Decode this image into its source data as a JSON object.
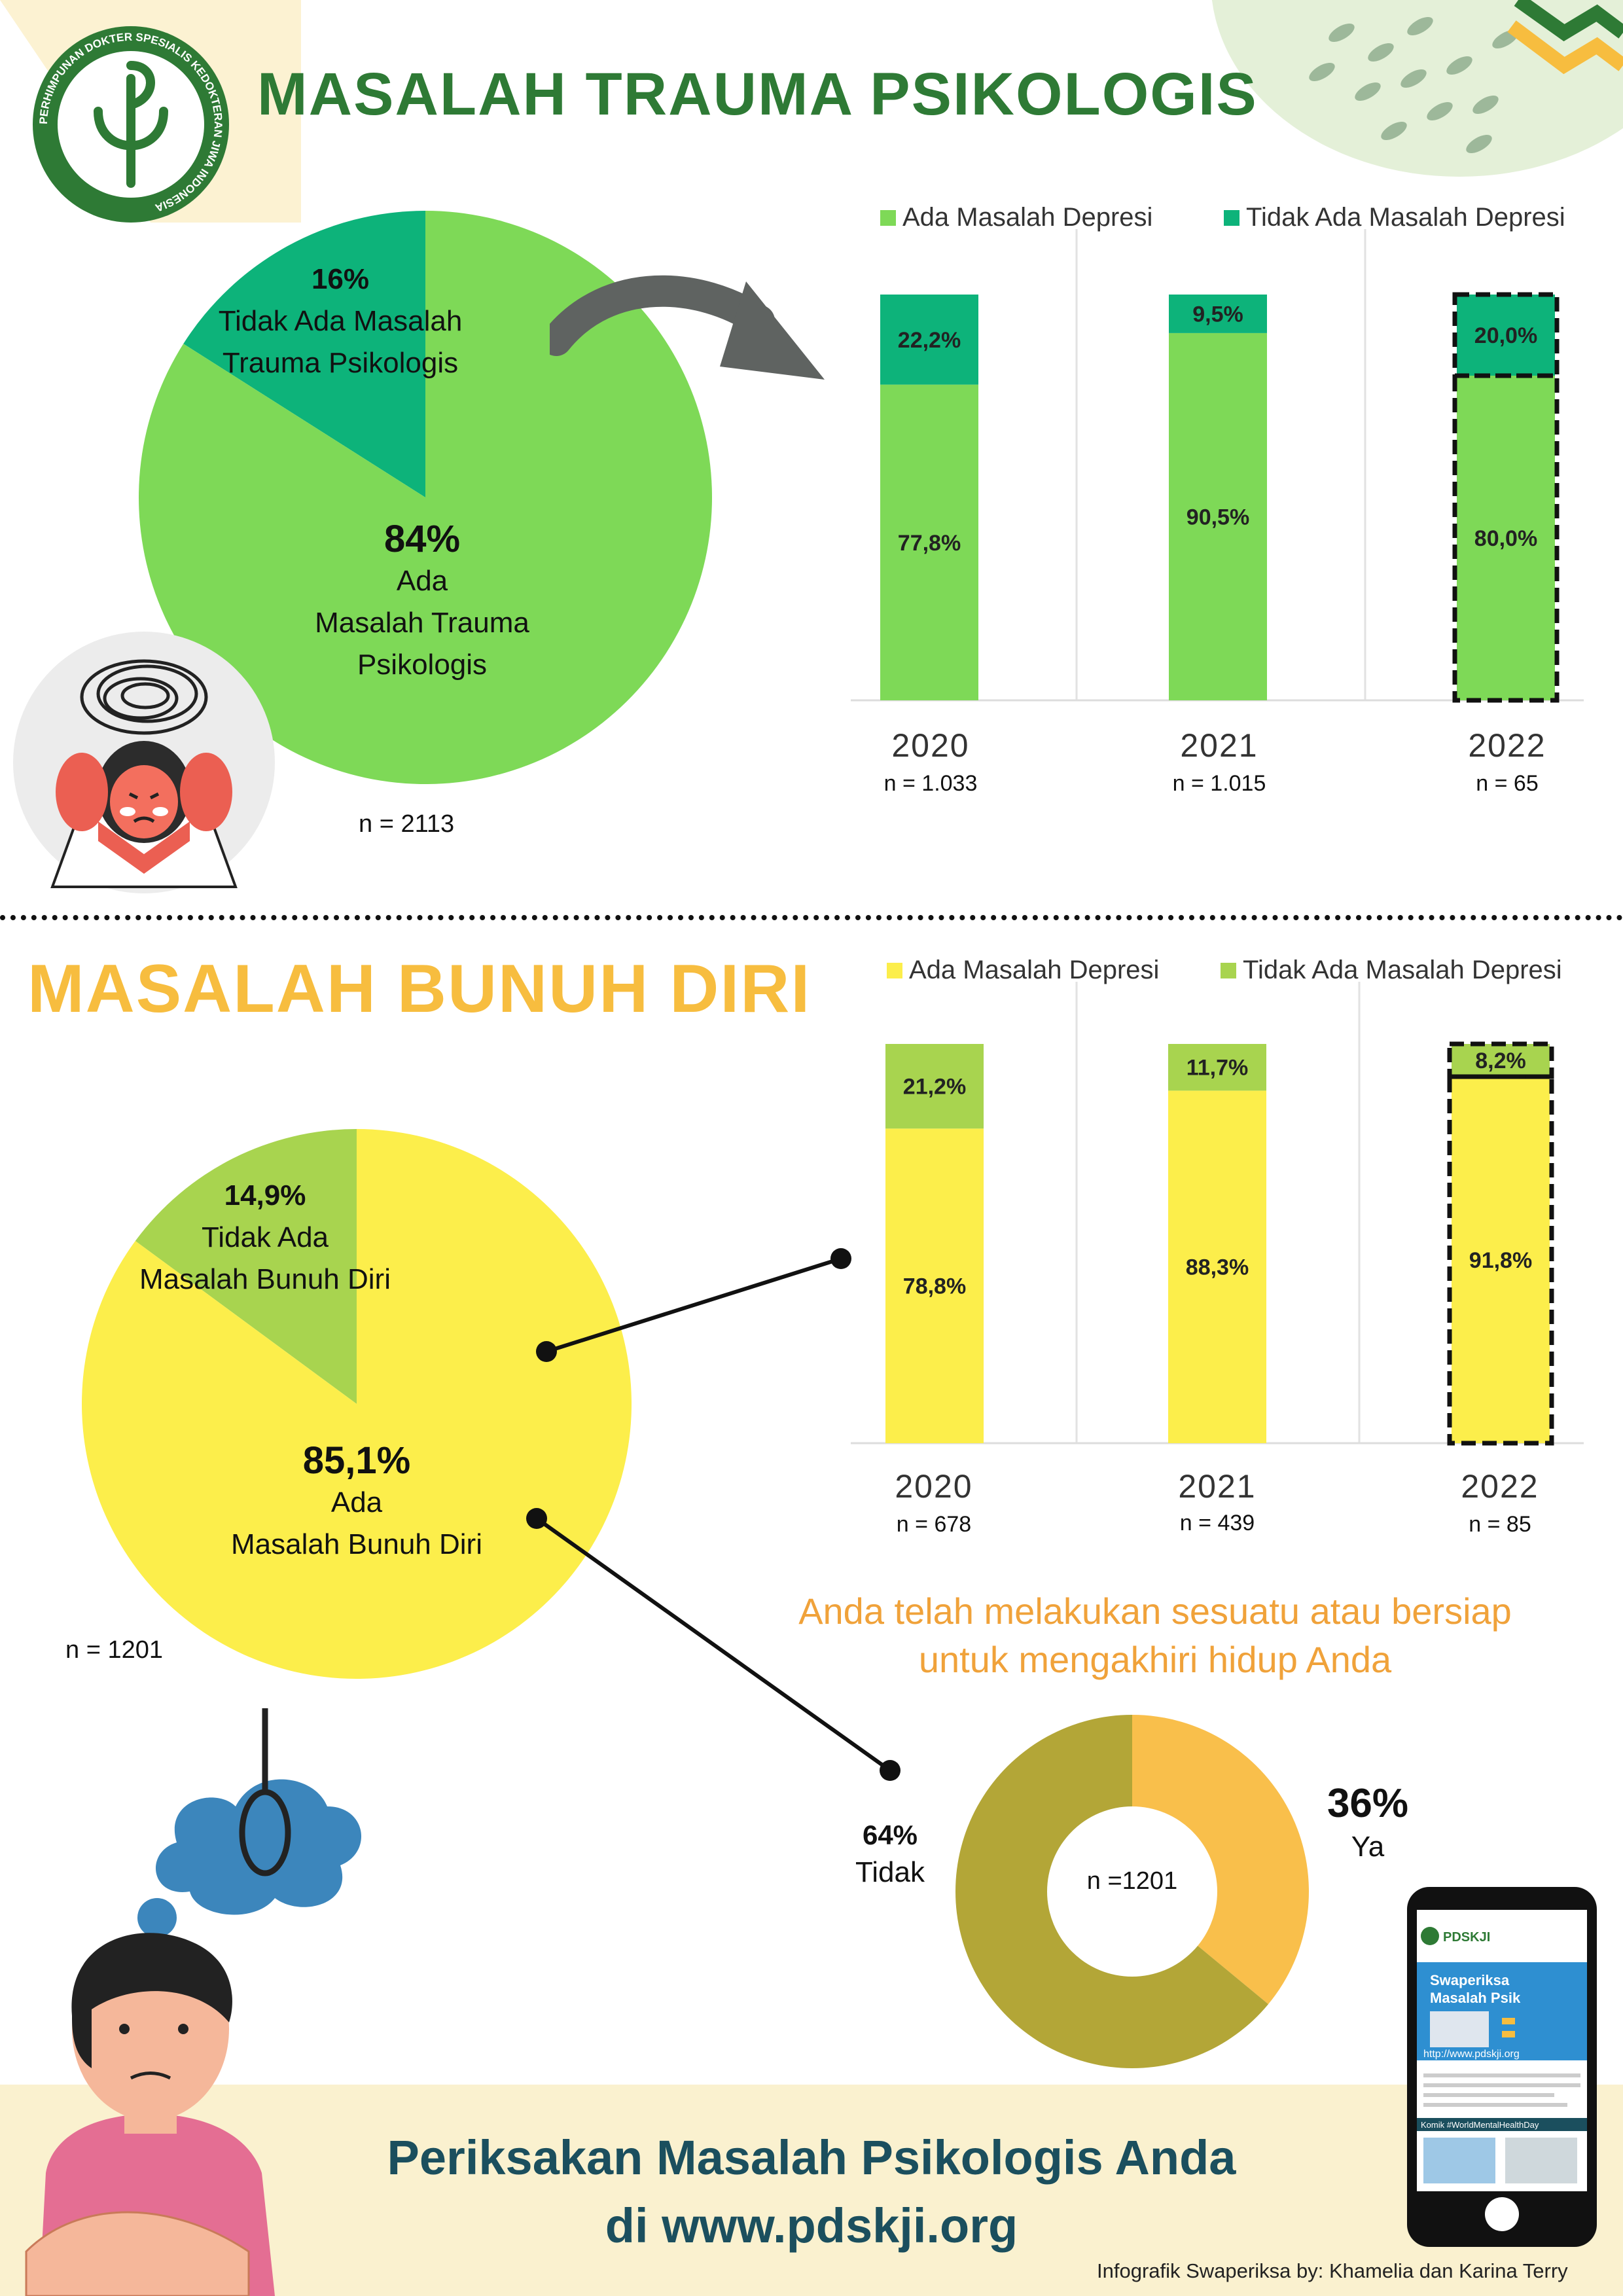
{
  "section1": {
    "title": "MASALAH TRAUMA PSIKOLOGIS",
    "pie": {
      "slices": [
        {
          "pct": "16%",
          "label_line1": "Tidak Ada Masalah",
          "label_line2": "Trauma Psikologis",
          "value": 16,
          "color": "#0db37a"
        },
        {
          "pct": "84%",
          "label_line1": "Ada",
          "label_line2": "Masalah Trauma",
          "label_line3": "Psikologis",
          "value": 84,
          "color": "#7ed957"
        }
      ],
      "n": "n = 2113"
    },
    "legend": [
      {
        "label": "Ada Masalah Depresi",
        "color": "#7ed957"
      },
      {
        "label": "Tidak Ada Masalah Depresi",
        "color": "#0db37a"
      }
    ],
    "bars": [
      {
        "year": "2020",
        "n": "n = 1.033",
        "top_label": "22,2%",
        "bottom_label": "77,8%"
      },
      {
        "year": "2021",
        "n": "n = 1.015",
        "top_label": "9,5%",
        "bottom_label": "90,5%"
      },
      {
        "year": "2022",
        "n": "n = 65",
        "top_label": "20,0%",
        "bottom_label": "80,0%"
      }
    ]
  },
  "section2": {
    "title": "MASALAH BUNUH DIRI",
    "pie": {
      "slices": [
        {
          "pct": "14,9%",
          "label_line1": "Tidak Ada",
          "label_line2": "Masalah Bunuh Diri",
          "value": 14.9,
          "color": "#a8d44f"
        },
        {
          "pct": "85,1%",
          "label_line1": "Ada",
          "label_line2": "Masalah Bunuh Diri",
          "value": 85.1,
          "color": "#fcee4b"
        }
      ],
      "n": "n = 1201"
    },
    "legend": [
      {
        "label": "Ada Masalah Depresi",
        "color": "#fcee4b"
      },
      {
        "label": "Tidak Ada Masalah Depresi",
        "color": "#a8d44f"
      }
    ],
    "bars": [
      {
        "year": "2020",
        "n": "n = 678",
        "top_label": "21,2%",
        "bottom_label": "78,8%"
      },
      {
        "year": "2021",
        "n": "n = 439",
        "top_label": "11,7%",
        "bottom_label": "88,3%"
      },
      {
        "year": "2022",
        "n": "n = 85",
        "top_label": "8,2%",
        "bottom_label": "91,8%"
      }
    ],
    "question_line1": "Anda telah melakukan sesuatu atau bersiap",
    "question_line2": "untuk mengakhiri hidup Anda",
    "donut": {
      "center": "n =1201",
      "ya_pct": "36%",
      "ya_label": "Ya",
      "tidak_pct": "64%",
      "tidak_label": "Tidak"
    }
  },
  "footer": {
    "cta_line1": "Periksakan Masalah Psikologis Anda",
    "cta_line2": "di www.pdskji.org",
    "credit": "Infografik Swaperiksa by: Khamelia dan Karina Terry"
  },
  "logo_text": "PERHIMPUNAN DOKTER SPESIALIS KEDOKTERAN JIWA INDONESIA",
  "phone": {
    "brand": "PDSKJI",
    "headline_1": "Swaperiksa",
    "headline_2": "Masalah Psik",
    "url": "http://www.pdskji.org",
    "komik": "Komik #WorldMentalHealthDay"
  },
  "chart_data": [
    {
      "type": "pie",
      "title": "MASALAH TRAUMA PSIKOLOGIS",
      "categories": [
        "Tidak Ada Masalah Trauma Psikologis",
        "Ada Masalah Trauma Psikologis"
      ],
      "values": [
        16,
        84
      ],
      "n": 2113
    },
    {
      "type": "bar",
      "stacked": true,
      "categories": [
        "2020",
        "2021",
        "2022"
      ],
      "series": [
        {
          "name": "Ada Masalah Depresi",
          "values": [
            77.8,
            90.5,
            80.0
          ]
        },
        {
          "name": "Tidak Ada Masalah Depresi",
          "values": [
            22.2,
            9.5,
            20.0
          ]
        }
      ],
      "ylim": [
        0,
        100
      ],
      "legend": "top",
      "grid": false
    },
    {
      "type": "pie",
      "title": "MASALAH BUNUH DIRI",
      "categories": [
        "Tidak Ada Masalah Bunuh Diri",
        "Ada Masalah Bunuh Diri"
      ],
      "values": [
        14.9,
        85.1
      ],
      "n": 1201
    },
    {
      "type": "bar",
      "stacked": true,
      "categories": [
        "2020",
        "2021",
        "2022"
      ],
      "series": [
        {
          "name": "Ada Masalah Depresi",
          "values": [
            78.8,
            88.3,
            91.8
          ]
        },
        {
          "name": "Tidak Ada Masalah Depresi",
          "values": [
            21.2,
            11.7,
            8.2
          ]
        }
      ],
      "ylim": [
        0,
        100
      ],
      "legend": "top",
      "grid": false
    },
    {
      "type": "pie",
      "title": "Anda telah melakukan sesuatu atau bersiap untuk mengakhiri hidup Anda",
      "categories": [
        "Ya",
        "Tidak"
      ],
      "values": [
        36,
        64
      ],
      "n": 1201
    }
  ]
}
